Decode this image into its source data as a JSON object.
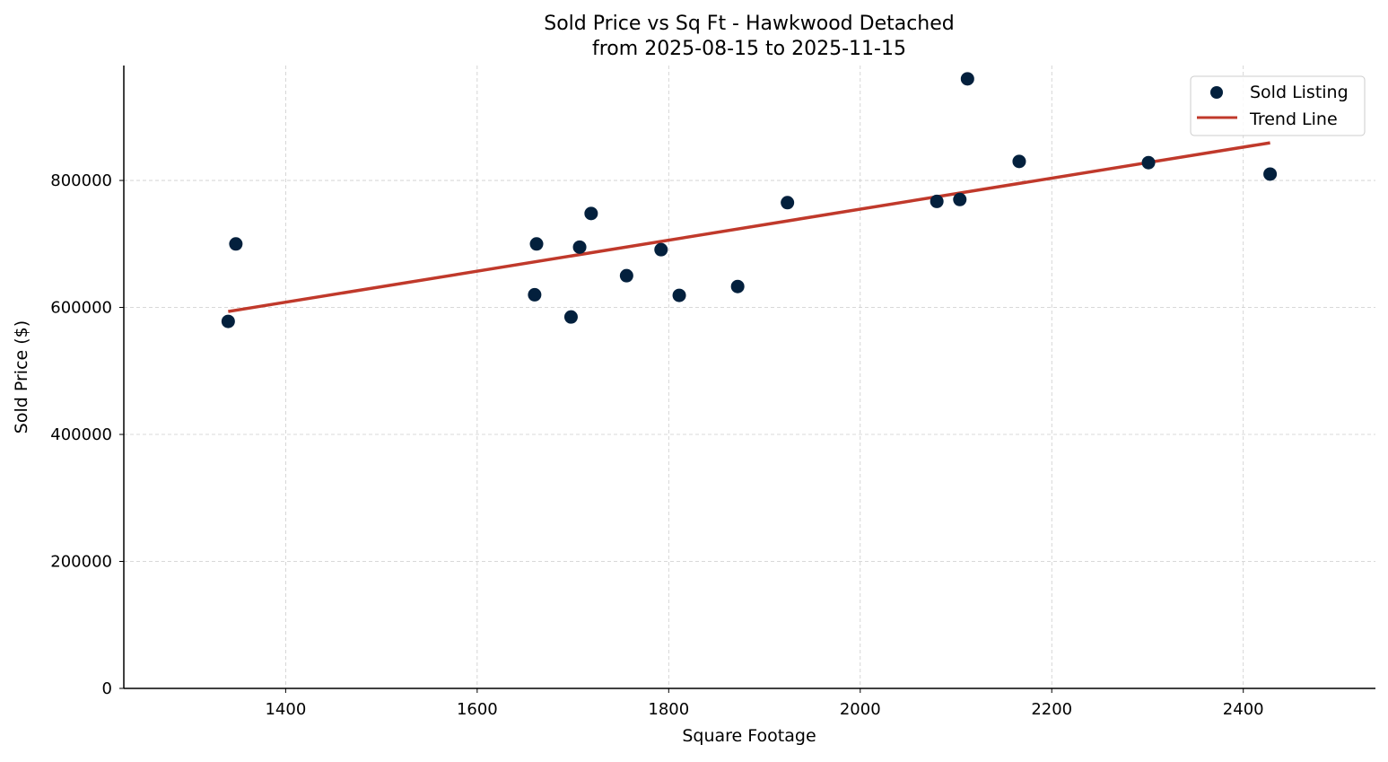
{
  "chart_data": {
    "type": "scatter",
    "title": "Sold Price vs Sq Ft - Hawkwood Detached",
    "subtitle": "from 2025-08-15 to 2025-11-15",
    "xlabel": "Square Footage",
    "ylabel": "Sold Price ($)",
    "xlim": [
      1231,
      2538
    ],
    "ylim": [
      0,
      981000
    ],
    "xticks": [
      1400,
      1600,
      1800,
      2000,
      2200,
      2400
    ],
    "yticks": [
      0,
      200000,
      400000,
      600000,
      800000
    ],
    "grid": true,
    "legend_position": "top-right",
    "series": [
      {
        "name": "Sold Listing",
        "kind": "scatter",
        "color": "#03203d",
        "points": [
          [
            1340,
            578000
          ],
          [
            1348,
            700000
          ],
          [
            1660,
            620000
          ],
          [
            1662,
            700000
          ],
          [
            1698,
            585000
          ],
          [
            1707,
            695000
          ],
          [
            1719,
            748000
          ],
          [
            1756,
            650000
          ],
          [
            1792,
            691000
          ],
          [
            1811,
            619000
          ],
          [
            1872,
            633000
          ],
          [
            1924,
            765000
          ],
          [
            2080,
            767000
          ],
          [
            2104,
            770000
          ],
          [
            2112,
            960000
          ],
          [
            2166,
            830000
          ],
          [
            2301,
            828000
          ],
          [
            2428,
            810000
          ]
        ]
      },
      {
        "name": "Trend Line",
        "kind": "line",
        "color": "#c0392b",
        "points": [
          [
            1340,
            593600
          ],
          [
            2428,
            859300
          ]
        ]
      }
    ]
  }
}
